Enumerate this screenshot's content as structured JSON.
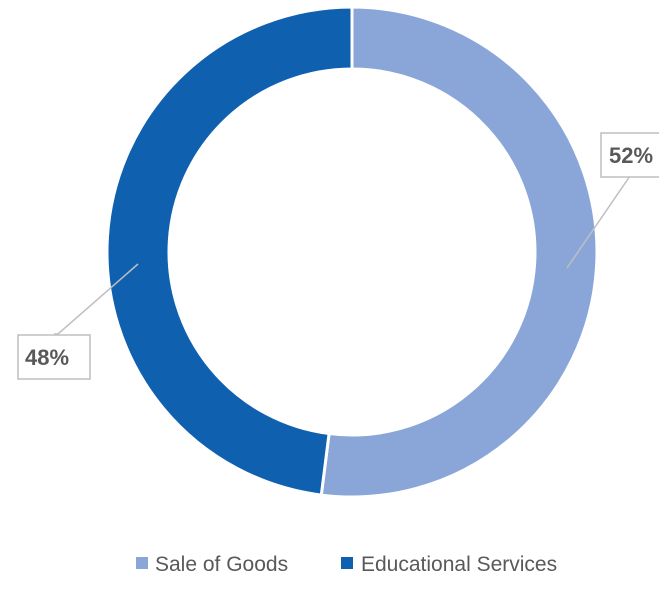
{
  "chart_data": {
    "type": "pie",
    "variant": "doughnut",
    "title": "",
    "categories": [
      "Sale of Goods",
      "Educational Services"
    ],
    "values": [
      52,
      48
    ],
    "value_unit": "%",
    "data_labels": [
      "52%",
      "48%"
    ],
    "colors": [
      "#8aa6d8",
      "#1060b0"
    ],
    "start_angle_deg": 0,
    "direction": "clockwise",
    "legend": {
      "position": "bottom",
      "entries": [
        "Sale of Goods",
        "Educational Services"
      ]
    }
  }
}
